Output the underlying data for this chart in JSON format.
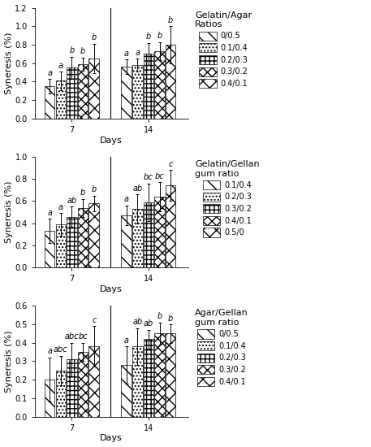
{
  "panel1": {
    "title": "Gelatin/Agar\nRatios",
    "legend_labels": [
      "0/0.5",
      "0.1/0.4",
      "0.2/0.3",
      "0.3/0.2",
      "0.4/0.1"
    ],
    "ylabel": "Syneresis (%)",
    "xlabel": "Days",
    "ylim": [
      0.0,
      1.2
    ],
    "yticks": [
      0.0,
      0.2,
      0.4,
      0.6,
      0.8,
      1.0,
      1.2
    ],
    "day7_values": [
      0.35,
      0.41,
      0.55,
      0.59,
      0.65
    ],
    "day7_errors": [
      0.08,
      0.1,
      0.12,
      0.07,
      0.16
    ],
    "day7_letters": [
      "a",
      "a",
      "b",
      "b",
      "b"
    ],
    "day14_values": [
      0.56,
      0.58,
      0.7,
      0.73,
      0.8
    ],
    "day14_errors": [
      0.08,
      0.07,
      0.12,
      0.1,
      0.2
    ],
    "day14_letters": [
      "a",
      "a",
      "b",
      "b",
      "b"
    ]
  },
  "panel2": {
    "title": "Gelatin/Gellan\ngum ratio",
    "legend_labels": [
      "0.1/0.4",
      "0.2/0.3",
      "0.3/0.2",
      "0.4/0.1",
      "0.5/0"
    ],
    "ylabel": "Syneresis (%)",
    "xlabel": "Days",
    "ylim": [
      0.0,
      1.0
    ],
    "yticks": [
      0.0,
      0.2,
      0.4,
      0.6,
      0.8,
      1.0
    ],
    "day7_values": [
      0.33,
      0.39,
      0.46,
      0.54,
      0.58
    ],
    "day7_errors": [
      0.11,
      0.1,
      0.09,
      0.08,
      0.07
    ],
    "day7_letters": [
      "a",
      "a",
      "ab",
      "b",
      "b"
    ],
    "day14_values": [
      0.47,
      0.53,
      0.59,
      0.64,
      0.74
    ],
    "day14_errors": [
      0.09,
      0.13,
      0.17,
      0.13,
      0.14
    ],
    "day14_letters": [
      "a",
      "ab",
      "bc",
      "bc",
      "c"
    ]
  },
  "panel3": {
    "title": "Agar/Gellan\ngum ratio",
    "legend_labels": [
      "0/0.5",
      "0.1/0.4",
      "0.2/0.3",
      "0.3/0.2",
      "0.4/0.1"
    ],
    "ylabel": "Syneresis (%)",
    "xlabel": "Days",
    "ylim": [
      0.0,
      0.6
    ],
    "yticks": [
      0.0,
      0.1,
      0.2,
      0.3,
      0.4,
      0.5,
      0.6
    ],
    "day7_values": [
      0.2,
      0.25,
      0.31,
      0.35,
      0.38
    ],
    "day7_errors": [
      0.12,
      0.08,
      0.09,
      0.05,
      0.11
    ],
    "day7_letters": [
      "a",
      "abc",
      "abc",
      "bc",
      "c"
    ],
    "day14_values": [
      0.28,
      0.38,
      0.42,
      0.45,
      0.45
    ],
    "day14_errors": [
      0.1,
      0.1,
      0.05,
      0.06,
      0.05
    ],
    "day14_letters": [
      "a",
      "ab",
      "ab",
      "b",
      "b"
    ]
  },
  "fontsize_label": 8,
  "fontsize_tick": 7,
  "fontsize_legend_title": 8,
  "fontsize_legend": 7,
  "fontsize_letter": 7
}
